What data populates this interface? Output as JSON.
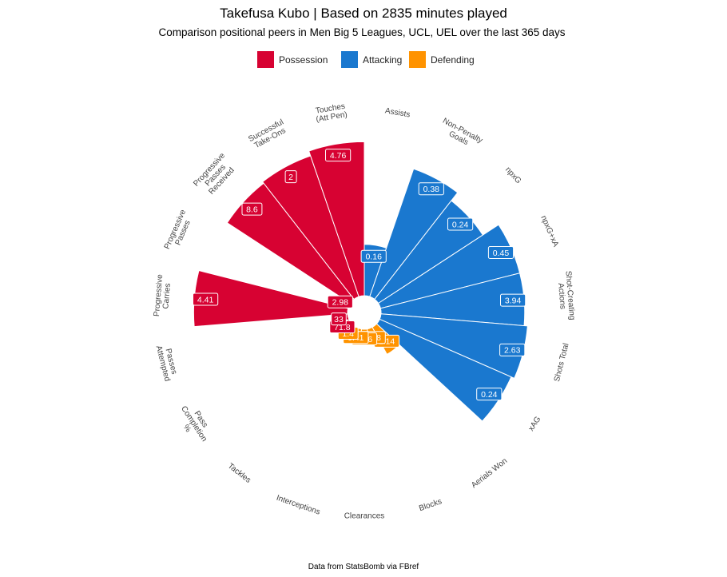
{
  "chart_data": {
    "type": "polar-bar",
    "title": "Takefusa Kubo | Based on 2835 minutes played",
    "subtitle": "Comparison positional peers in Men Big 5 Leagues, UCL, UEL over the last 365 days",
    "caption": "Data from StatsBomb via FBref",
    "legend": {
      "placement": "top",
      "items": [
        {
          "label": "Possession",
          "color": "#D70232"
        },
        {
          "label": "Attacking",
          "color": "#1A78CF"
        },
        {
          "label": "Defending",
          "color": "#FF9300"
        }
      ]
    },
    "colors": {
      "Possession": {
        "strong": "#D70232",
        "light": "#E98197"
      },
      "Attacking": {
        "strong": "#1A78CF",
        "light": "#8DBBE7"
      },
      "Defending": {
        "strong": "#FF9300",
        "light": "#FFC982"
      }
    },
    "percentile_range": [
      0,
      100
    ],
    "categories": [
      {
        "label": "Assists",
        "group": "Attacking",
        "value_label": "0.16",
        "percentile": 30,
        "strong": true
      },
      {
        "label": "Non-Penalty Goals",
        "group": "Attacking",
        "value_label": "0.38",
        "percentile": 79,
        "strong": true
      },
      {
        "label": "npxG",
        "group": "Attacking",
        "value_label": "0.24",
        "percentile": 73,
        "strong": true
      },
      {
        "label": "npxG+xA",
        "group": "Attacking",
        "value_label": "0.45",
        "percentile": 84,
        "strong": true
      },
      {
        "label": "Shot-Creating Actions",
        "group": "Attacking",
        "value_label": "3.94",
        "percentile": 84,
        "strong": true
      },
      {
        "label": "Shots Total",
        "group": "Attacking",
        "value_label": "2.63",
        "percentile": 86,
        "strong": true
      },
      {
        "label": "xAG",
        "group": "Attacking",
        "value_label": "0.24",
        "percentile": 84,
        "strong": true
      },
      {
        "label": "Aerials Won",
        "group": "Defending",
        "value_label": "1.14",
        "percentile": 18,
        "strong": true
      },
      {
        "label": "Blocks",
        "group": "Defending",
        "value_label": "0.48",
        "percentile": 5,
        "strong": true
      },
      {
        "label": "Clearances",
        "group": "Defending",
        "value_label": "0.16",
        "percentile": 3,
        "strong": true
      },
      {
        "label": "Interceptions",
        "group": "Defending",
        "value_label": "0.41",
        "percentile": 3,
        "strong": true
      },
      {
        "label": "Tackles",
        "group": "Defending",
        "value_label": "1.4",
        "percentile": 3,
        "strong": true
      },
      {
        "label": "Pass Completion %",
        "group": "Possession",
        "value_label": "71.8",
        "percentile": 3,
        "strong": true
      },
      {
        "label": "Passes Attempted",
        "group": "Possession",
        "value_label": "33",
        "percentile": 3,
        "strong": true
      },
      {
        "label": "Progressive Carries",
        "group": "Possession",
        "value_label": "4.41",
        "percentile": 90,
        "strong": true
      },
      {
        "label": "Progressive Passes",
        "group": "Possession",
        "value_label": "2.98",
        "percentile": 3,
        "strong": true
      },
      {
        "label": "Progressive Passes Received",
        "group": "Possession",
        "value_label": "8.6",
        "percentile": 86,
        "strong": true
      },
      {
        "label": "Successful Take-Ons",
        "group": "Possession",
        "value_label": "2",
        "percentile": 87,
        "strong": true
      },
      {
        "label": "Touches (Att Pen)",
        "group": "Possession",
        "value_label": "4.76",
        "percentile": 90,
        "strong": true
      }
    ]
  }
}
